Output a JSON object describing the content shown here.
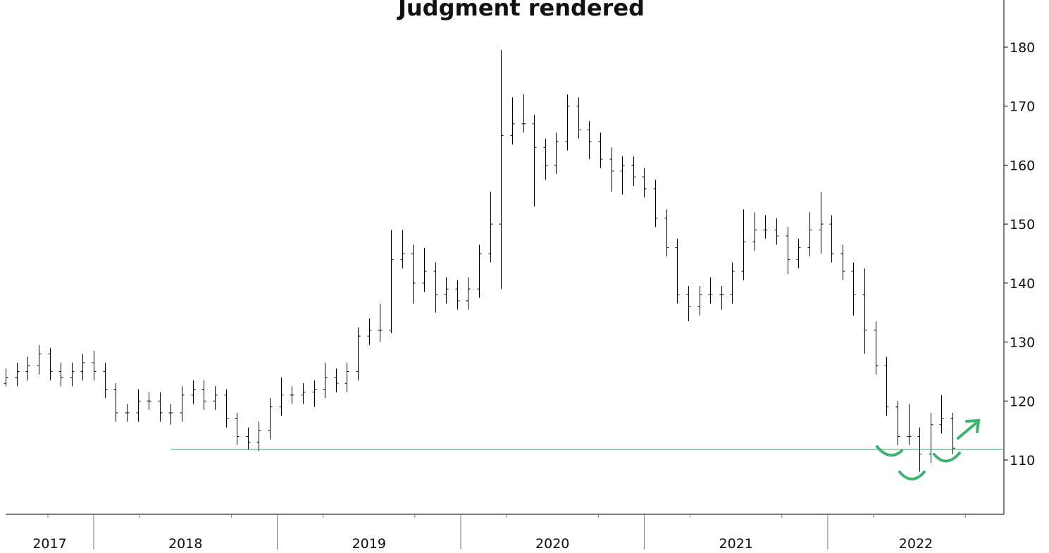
{
  "chart_data": {
    "type": "ohlc",
    "title": "Judgment rendered",
    "title_color": "#0a8f3e",
    "color": "#000000",
    "xlim": [
      2017.52,
      2022.96
    ],
    "ylim": [
      100.8,
      188
    ],
    "yticks": [
      110,
      120,
      130,
      140,
      150,
      160,
      170,
      180
    ],
    "xticks": [
      2018,
      2019,
      2020,
      2021,
      2022
    ],
    "minor_xticks": [
      2017.75,
      2018.25,
      2018.75,
      2019.25,
      2019.75,
      2020.25,
      2020.75,
      2021.25,
      2021.75,
      2022.25,
      2022.75
    ],
    "year_labels": [
      "2017",
      "2018",
      "2019",
      "2020",
      "2021",
      "2022"
    ],
    "support_line": {
      "value": 111.8,
      "x_start": 2018.42,
      "color": "#3cb371"
    },
    "x": [
      2017.52,
      2017.58,
      2017.64,
      2017.7,
      2017.76,
      2017.82,
      2017.88,
      2017.94,
      2018.0,
      2018.06,
      2018.12,
      2018.18,
      2018.24,
      2018.3,
      2018.36,
      2018.42,
      2018.48,
      2018.54,
      2018.6,
      2018.66,
      2018.72,
      2018.78,
      2018.84,
      2018.9,
      2018.96,
      2019.02,
      2019.08,
      2019.14,
      2019.2,
      2019.26,
      2019.32,
      2019.38,
      2019.44,
      2019.5,
      2019.56,
      2019.62,
      2019.68,
      2019.74,
      2019.8,
      2019.86,
      2019.92,
      2019.98,
      2020.04,
      2020.1,
      2020.16,
      2020.22,
      2020.28,
      2020.34,
      2020.4,
      2020.46,
      2020.52,
      2020.58,
      2020.64,
      2020.7,
      2020.76,
      2020.82,
      2020.88,
      2020.94,
      2021.0,
      2021.06,
      2021.12,
      2021.18,
      2021.24,
      2021.3,
      2021.36,
      2021.42,
      2021.48,
      2021.54,
      2021.6,
      2021.66,
      2021.72,
      2021.78,
      2021.84,
      2021.9,
      2021.96,
      2022.02,
      2022.08,
      2022.14,
      2022.2,
      2022.26,
      2022.32,
      2022.38,
      2022.44,
      2022.5,
      2022.56,
      2022.62,
      2022.68
    ],
    "ohlc": [
      [
        123,
        125.5,
        122.5,
        124
      ],
      [
        124,
        126.5,
        122.5,
        125
      ],
      [
        125,
        127.5,
        123.5,
        126
      ],
      [
        126,
        129.5,
        124.5,
        128
      ],
      [
        128,
        129,
        123.5,
        125
      ],
      [
        125,
        126.5,
        122.5,
        124
      ],
      [
        124,
        126.5,
        122.5,
        125
      ],
      [
        125,
        128,
        123.5,
        126.5
      ],
      [
        126.5,
        128.5,
        123.5,
        125
      ],
      [
        125,
        126.5,
        120.5,
        122
      ],
      [
        122,
        123,
        116.5,
        118
      ],
      [
        118,
        119.5,
        116.5,
        118
      ],
      [
        118,
        122,
        116.5,
        120
      ],
      [
        120,
        121.5,
        118.5,
        120
      ],
      [
        120,
        121.5,
        116.5,
        118
      ],
      [
        118,
        119.5,
        116,
        118
      ],
      [
        118,
        122.5,
        116.5,
        121
      ],
      [
        121,
        123.5,
        119.5,
        122
      ],
      [
        122,
        123.5,
        118.5,
        120
      ],
      [
        120,
        122.5,
        118.5,
        121
      ],
      [
        121,
        122,
        115.5,
        117
      ],
      [
        117,
        118,
        112.5,
        114
      ],
      [
        114,
        115.5,
        111.8,
        113
      ],
      [
        113,
        116.5,
        111.5,
        115
      ],
      [
        115,
        120.5,
        113.5,
        119
      ],
      [
        119,
        124,
        117.5,
        121
      ],
      [
        121,
        122.5,
        119.5,
        121
      ],
      [
        121,
        123,
        119.5,
        121.5
      ],
      [
        121.5,
        123.5,
        119,
        122
      ],
      [
        122,
        126.5,
        120.5,
        124
      ],
      [
        124,
        125.5,
        121.5,
        123
      ],
      [
        123,
        126.5,
        121.5,
        125
      ],
      [
        125,
        132.5,
        123.5,
        131
      ],
      [
        131,
        134,
        129.5,
        132
      ],
      [
        132,
        136.5,
        130,
        132
      ],
      [
        132,
        149,
        131.5,
        144
      ],
      [
        144,
        149,
        142.5,
        145
      ],
      [
        145,
        146.5,
        136.5,
        140
      ],
      [
        140,
        146,
        138.5,
        142
      ],
      [
        142,
        143.5,
        135,
        138
      ],
      [
        138,
        141,
        136.5,
        139
      ],
      [
        139,
        140.5,
        135.5,
        137
      ],
      [
        137,
        141,
        135.5,
        139
      ],
      [
        139,
        146.5,
        137.5,
        145
      ],
      [
        145,
        155.5,
        143.5,
        150
      ],
      [
        150,
        179.5,
        139,
        165
      ],
      [
        165,
        171.5,
        163.5,
        167
      ],
      [
        167,
        172,
        165.5,
        167
      ],
      [
        167,
        168.5,
        153,
        163
      ],
      [
        163,
        164.5,
        157.5,
        160
      ],
      [
        160,
        165.5,
        158.5,
        164
      ],
      [
        164,
        172,
        162.5,
        170
      ],
      [
        170,
        171.5,
        164.5,
        166
      ],
      [
        166,
        167.5,
        161,
        164
      ],
      [
        164,
        165.5,
        159.5,
        161
      ],
      [
        161,
        163,
        155.5,
        159
      ],
      [
        159,
        161.5,
        155,
        160
      ],
      [
        160,
        161.5,
        156.5,
        158
      ],
      [
        158,
        159.5,
        154.5,
        156
      ],
      [
        156,
        157.5,
        149.5,
        151
      ],
      [
        151,
        152.5,
        144.5,
        146
      ],
      [
        146,
        147.5,
        136.5,
        138
      ],
      [
        138,
        139.5,
        133.5,
        136
      ],
      [
        136,
        139.5,
        134.5,
        138
      ],
      [
        138,
        141,
        136.5,
        138
      ],
      [
        138,
        139.5,
        135.5,
        138
      ],
      [
        138,
        143.5,
        136.5,
        142
      ],
      [
        142,
        152.5,
        140.5,
        147
      ],
      [
        147,
        152,
        145.5,
        149
      ],
      [
        149,
        151.5,
        147.5,
        149
      ],
      [
        149,
        151,
        146.5,
        148
      ],
      [
        148,
        149.5,
        141.5,
        144
      ],
      [
        144,
        147.5,
        142.5,
        146
      ],
      [
        146,
        152,
        144.5,
        149
      ],
      [
        149,
        155.5,
        145,
        150
      ],
      [
        150,
        151.5,
        143.5,
        145
      ],
      [
        145,
        146.5,
        140.5,
        142
      ],
      [
        142,
        143.5,
        134.5,
        138
      ],
      [
        138,
        142.5,
        128,
        132
      ],
      [
        132,
        133.5,
        124.5,
        126
      ],
      [
        126,
        127.5,
        117.5,
        119
      ],
      [
        119,
        120,
        112.5,
        114
      ],
      [
        114,
        119.5,
        112.5,
        114
      ],
      [
        114,
        115.5,
        108,
        111
      ],
      [
        111,
        118,
        109.5,
        116
      ],
      [
        116,
        121,
        114.5,
        117
      ],
      [
        117,
        118,
        111,
        112
      ]
    ]
  }
}
